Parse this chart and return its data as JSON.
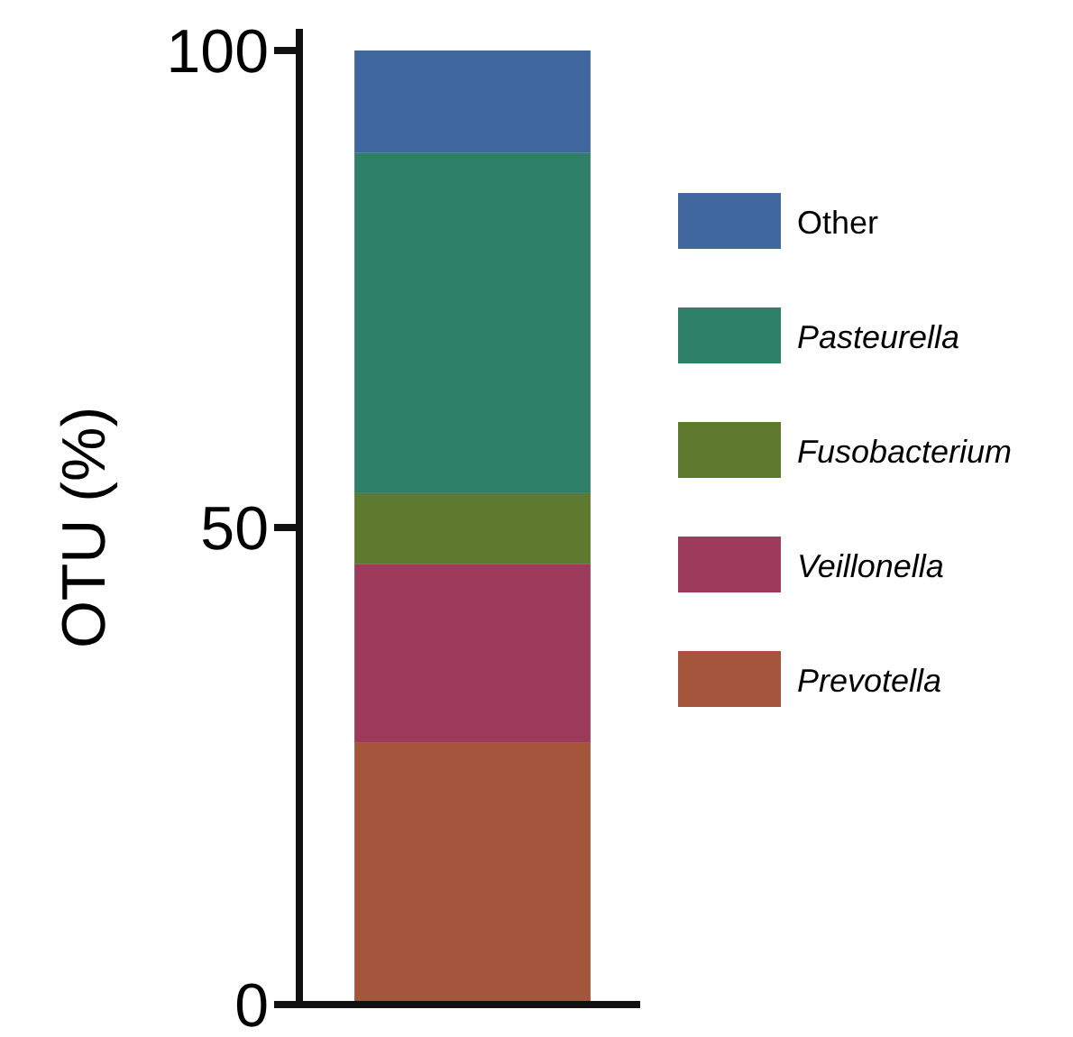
{
  "chart_data": {
    "type": "bar",
    "stacked": true,
    "ylabel": "OTU (%)",
    "categories": [
      null
    ],
    "ylim": [
      0,
      100
    ],
    "yticks": [
      0,
      50,
      100
    ],
    "legend": "right",
    "grid": false,
    "series": [
      {
        "name": "Prevotella",
        "color": "#a5553b",
        "values": [
          27.5
        ]
      },
      {
        "name": "Veillonella",
        "color": "#9e3a5c",
        "values": [
          18.7
        ]
      },
      {
        "name": "Fusobacterium",
        "color": "#5d7a2f",
        "values": [
          7.4
        ]
      },
      {
        "name": "Pasteurella",
        "color": "#2e7f67",
        "values": [
          35.7
        ]
      },
      {
        "name": "Other",
        "color": "#41689e",
        "values": [
          10.7
        ]
      }
    ]
  }
}
